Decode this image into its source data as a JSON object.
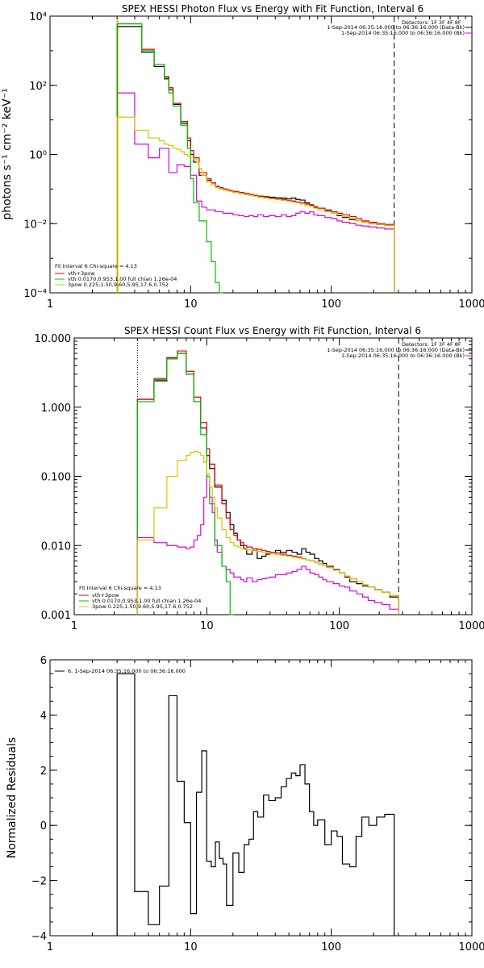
{
  "chart_data": [
    {
      "type": "line",
      "id": "photon",
      "title": "SPEX HESSI Photon Flux vs Energy with Fit Function, Interval 6",
      "xlabel": "",
      "ylabel": "photons s⁻¹ cm⁻² keV⁻¹",
      "xscale": "log",
      "yscale": "log",
      "xlim": [
        1,
        1000
      ],
      "ylim": [
        0.0001,
        10000
      ],
      "xticks": [
        1,
        10,
        100,
        1000
      ],
      "xtick_labels": [
        "1",
        "10",
        "100",
        "1000"
      ],
      "yticks": [
        0.0001,
        0.01,
        1,
        100,
        10000
      ],
      "ytick_labels": [
        "10⁻⁴",
        "10⁻²",
        "10⁰",
        "10²",
        "10⁴"
      ],
      "header": {
        "detectors": "Detectors: 1F 3F 4F 8F",
        "entries": [
          {
            "text": "1-Sep-2014 06:35:16.000 to 06:36:16.000 (Data-Bk)",
            "color": "#000000"
          },
          {
            "text": "1-Sep-2014 06:35:16.000 to 06:36:16.000 (Bk)",
            "color": "#e000e0"
          }
        ]
      },
      "fit_box": {
        "header": "Fit Interval 6   Chi-square = 4.13",
        "entries": [
          {
            "text": "vth+3pow",
            "color": "#e00000"
          },
          {
            "text": "vth 0.0170,0.953,1.00  full chian 1.26e-04",
            "color": "#00c000"
          },
          {
            "text": "3pow 0.225,1.50,9.60,5.95,17.6,0.752",
            "color": "#e0c000"
          }
        ]
      },
      "vlines": [
        {
          "x": 3,
          "style": "dotted",
          "color": "#000000"
        },
        {
          "x": 3,
          "style": "solid",
          "color": "#e0c000"
        },
        {
          "x": 280,
          "style": "dashed",
          "color": "#000000"
        }
      ],
      "edges": [
        3.0,
        3.5,
        4.0,
        4.5,
        5.0,
        5.5,
        6.0,
        6.5,
        7.0,
        7.5,
        8.0,
        8.5,
        9.0,
        9.5,
        10.0,
        10.5,
        11.0,
        11.5,
        12.0,
        13.0,
        14.0,
        15.0,
        16.0,
        17.0,
        18.0,
        19.0,
        20.0,
        22.0,
        24.0,
        26.0,
        28.0,
        30.0,
        33.0,
        36.0,
        40.0,
        44.0,
        48.0,
        52.0,
        56.0,
        60.0,
        65.0,
        70.0,
        75.0,
        80.0,
        90.0,
        100.0,
        110.0,
        120.0,
        135.0,
        150.0,
        165.0,
        185.0,
        210.0,
        240.0,
        280.0
      ],
      "series": [
        {
          "name": "",
          "color": "#000000",
          "values": [
            5000,
            5000,
            5000,
            900,
            900,
            350,
            350,
            160,
            75,
            28,
            28,
            8,
            8,
            2.5,
            1.0,
            0.6,
            0.6,
            0.25,
            0.25,
            0.18,
            0.15,
            0.12,
            0.11,
            0.1,
            0.095,
            0.085,
            0.08,
            0.075,
            0.07,
            0.068,
            0.065,
            0.062,
            0.06,
            0.058,
            0.056,
            0.055,
            0.052,
            0.055,
            0.05,
            0.048,
            0.04,
            0.035,
            0.03,
            0.028,
            0.024,
            0.02,
            0.017,
            0.015,
            0.013,
            0.012,
            0.011,
            0.01,
            0.0095,
            0.009
          ]
        },
        {
          "name": "",
          "color": "#e000e0",
          "values": [
            60,
            60,
            2,
            2,
            0.8,
            0.8,
            1.5,
            1.5,
            0.3,
            0.3,
            0.5,
            0.5,
            0.45,
            0.45,
            0.25,
            0.25,
            0.045,
            0.045,
            0.03,
            0.025,
            0.025,
            0.022,
            0.022,
            0.02,
            0.02,
            0.02,
            0.018,
            0.017,
            0.016,
            0.017,
            0.016,
            0.018,
            0.016,
            0.017,
            0.016,
            0.018,
            0.016,
            0.017,
            0.02,
            0.022,
            0.02,
            0.022,
            0.018,
            0.017,
            0.015,
            0.014,
            0.012,
            0.011,
            0.01,
            0.009,
            0.0085,
            0.008,
            0.0075,
            0.007
          ]
        },
        {
          "name": "vth+3pow",
          "color": "#e00000",
          "values": [
            6000,
            6000,
            6000,
            1100,
            1100,
            400,
            400,
            180,
            85,
            30,
            30,
            9,
            9,
            3,
            1.3,
            0.8,
            0.8,
            0.3,
            0.3,
            0.2,
            0.15,
            0.12,
            0.11,
            0.1,
            0.095,
            0.09,
            0.085,
            0.08,
            0.075,
            0.07,
            0.066,
            0.062,
            0.058,
            0.055,
            0.052,
            0.05,
            0.047,
            0.045,
            0.042,
            0.04,
            0.037,
            0.034,
            0.031,
            0.028,
            0.025,
            0.022,
            0.02,
            0.018,
            0.016,
            0.014,
            0.012,
            0.011,
            0.01,
            0.0095
          ]
        },
        {
          "name": "vth",
          "color": "#00c000",
          "values": [
            6000,
            6000,
            6000,
            1000,
            1000,
            400,
            400,
            150,
            60,
            25,
            25,
            7,
            7,
            1.5,
            0.2,
            0.04,
            0.04,
            0.012,
            0.012,
            0.003,
            0.0008,
            0.0002,
            6e-05
          ]
        },
        {
          "name": "3pow",
          "color": "#e0c000",
          "values": [
            12,
            12,
            5,
            5,
            3,
            3,
            2.5,
            2,
            1.8,
            1.5,
            1.4,
            1.2,
            1.0,
            0.9,
            0.8,
            0.75,
            0.6,
            0.4,
            0.25,
            0.16,
            0.13,
            0.11,
            0.1,
            0.095,
            0.09,
            0.085,
            0.08,
            0.075,
            0.07,
            0.066,
            0.062,
            0.058,
            0.055,
            0.052,
            0.05,
            0.047,
            0.045,
            0.042,
            0.04,
            0.037,
            0.034,
            0.031,
            0.028,
            0.025,
            0.022,
            0.02,
            0.018,
            0.016,
            0.014,
            0.012,
            0.011,
            0.01,
            0.0095,
            0.009
          ]
        }
      ]
    },
    {
      "type": "line",
      "id": "count",
      "title": "SPEX HESSI Count Flux vs Energy with Fit Function, Interval 6",
      "xlabel": "",
      "ylabel": "",
      "xscale": "log",
      "yscale": "log",
      "xlim": [
        1,
        1000
      ],
      "ylim": [
        0.001,
        10
      ],
      "xticks": [
        1,
        10,
        100,
        1000
      ],
      "xtick_labels": [
        "1",
        "10",
        "100",
        "1000"
      ],
      "yticks": [
        0.001,
        0.01,
        0.1,
        1,
        10
      ],
      "ytick_labels": [
        "0.001",
        "0.010",
        "0.100",
        "1.000",
        "10.000"
      ],
      "header": {
        "detectors": "Detectors: 1F 3F 4F 8F",
        "entries": [
          {
            "text": "1-Sep-2014 06:35:16.000 to 06:36:16.000 (Data-Bk)",
            "color": "#000000"
          },
          {
            "text": "1-Sep-2014 06:35:16.000 to 06:36:16.000 (Bk)",
            "color": "#e000e0"
          }
        ]
      },
      "fit_box": {
        "header": "Fit Interval 6   Chi-square = 4.13",
        "entries": [
          {
            "text": "vth+3pow",
            "color": "#e00000"
          },
          {
            "text": "vth 0.0170,0.953,1.00  full chian 1.26e-04",
            "color": "#00c000"
          },
          {
            "text": "3pow 0.225,1.50,9.60,5.95,17.6,0.752",
            "color": "#e0c000"
          }
        ]
      },
      "vlines": [
        {
          "x": 3,
          "style": "dotted",
          "color": "#000000"
        },
        {
          "x": 280,
          "style": "dashed",
          "color": "#000000"
        }
      ],
      "edges": [
        3.0,
        3.5,
        4.0,
        4.5,
        5.0,
        5.5,
        6.0,
        6.5,
        7.0,
        7.5,
        8.0,
        8.5,
        9.0,
        9.5,
        10.0,
        10.5,
        11.0,
        11.5,
        12.0,
        13.0,
        14.0,
        15.0,
        16.0,
        17.0,
        18.0,
        19.0,
        20.0,
        22.0,
        24.0,
        26.0,
        28.0,
        30.0,
        33.0,
        36.0,
        40.0,
        44.0,
        48.0,
        52.0,
        56.0,
        60.0,
        65.0,
        70.0,
        75.0,
        80.0,
        90.0,
        100.0,
        110.0,
        120.0,
        135.0,
        150.0,
        165.0,
        185.0,
        210.0,
        240.0,
        280.0
      ],
      "series": [
        {
          "name": "",
          "color": "#000000",
          "values": [
            1.3,
            1.3,
            2.4,
            2.4,
            5.0,
            5.0,
            6.0,
            6.0,
            3.0,
            3.0,
            1.2,
            1.2,
            0.5,
            0.5,
            0.2,
            0.13,
            0.13,
            0.07,
            0.07,
            0.045,
            0.03,
            0.02,
            0.015,
            0.012,
            0.01,
            0.009,
            0.0075,
            0.0085,
            0.0065,
            0.007,
            0.0075,
            0.008,
            0.0085,
            0.008,
            0.0085,
            0.008,
            0.0075,
            0.009,
            0.008,
            0.0075,
            0.0065,
            0.006,
            0.0055,
            0.005,
            0.0045,
            0.004,
            0.0035,
            0.003,
            0.0028,
            0.0026,
            0.0025,
            0.0023,
            0.0021,
            0.0018
          ]
        },
        {
          "name": "",
          "color": "#e000e0",
          "values": [
            0.013,
            0.013,
            0.011,
            0.011,
            0.01,
            0.01,
            0.0095,
            0.0095,
            0.009,
            0.0095,
            0.012,
            0.014,
            0.02,
            0.05,
            0.1,
            0.05,
            0.03,
            0.012,
            0.008,
            0.005,
            0.0045,
            0.004,
            0.0035,
            0.0035,
            0.0032,
            0.003,
            0.0034,
            0.003,
            0.0032,
            0.0033,
            0.0034,
            0.0035,
            0.0038,
            0.0038,
            0.004,
            0.0042,
            0.0045,
            0.005,
            0.0045,
            0.004,
            0.0038,
            0.0035,
            0.0032,
            0.003,
            0.0028,
            0.0026,
            0.0025,
            0.0022,
            0.002,
            0.0018,
            0.0016,
            0.0015,
            0.0014,
            0.0012
          ]
        },
        {
          "name": "vth+3pow",
          "color": "#e00000",
          "values": [
            1.3,
            1.3,
            2.6,
            2.6,
            5.2,
            5.2,
            6.5,
            6.5,
            3.3,
            3.3,
            1.4,
            1.4,
            0.6,
            0.6,
            0.25,
            0.15,
            0.15,
            0.075,
            0.075,
            0.04,
            0.025,
            0.017,
            0.014,
            0.012,
            0.011,
            0.01,
            0.0095,
            0.009,
            0.0088,
            0.0085,
            0.0082,
            0.008,
            0.0078,
            0.0075,
            0.0072,
            0.007,
            0.0068,
            0.0065,
            0.0062,
            0.006,
            0.0057,
            0.0054,
            0.0051,
            0.0048,
            0.0044,
            0.004,
            0.0036,
            0.0033,
            0.003,
            0.0027,
            0.0025,
            0.0023,
            0.0021,
            0.0019
          ]
        },
        {
          "name": "vth",
          "color": "#00c000",
          "values": [
            1.2,
            1.2,
            2.5,
            2.5,
            5.0,
            5.0,
            6.0,
            6.0,
            3.0,
            3.0,
            1.2,
            1.2,
            0.4,
            0.4,
            0.1,
            0.04,
            0.04,
            0.01,
            0.01,
            0.005,
            0.003,
            0.001
          ]
        },
        {
          "name": "3pow",
          "color": "#e0c000",
          "values": [
            0.012,
            0.012,
            0.035,
            0.035,
            0.1,
            0.1,
            0.17,
            0.17,
            0.2,
            0.22,
            0.23,
            0.22,
            0.2,
            0.16,
            0.11,
            0.07,
            0.05,
            0.035,
            0.025,
            0.017,
            0.013,
            0.011,
            0.01,
            0.0095,
            0.009,
            0.0088,
            0.0086,
            0.0084,
            0.0082,
            0.008,
            0.0078,
            0.0076,
            0.0074,
            0.0072,
            0.007,
            0.0068,
            0.0066,
            0.0064,
            0.0062,
            0.006,
            0.0057,
            0.0054,
            0.0051,
            0.0048,
            0.0044,
            0.004,
            0.0036,
            0.0033,
            0.003,
            0.0027,
            0.0025,
            0.0023,
            0.0021,
            0.0019
          ]
        }
      ]
    },
    {
      "type": "line",
      "id": "residual",
      "title": "",
      "xlabel": "",
      "ylabel": "Normalized Residuals",
      "xscale": "log",
      "yscale": "linear",
      "xlim": [
        1,
        1000
      ],
      "ylim": [
        -4,
        6
      ],
      "xticks": [
        1,
        10,
        100,
        1000
      ],
      "xtick_labels": [
        "1",
        "10",
        "100",
        "1000"
      ],
      "yticks": [
        -4,
        -2,
        0,
        2,
        4,
        6
      ],
      "ytick_labels": [
        "−4",
        "−2",
        "0",
        "2",
        "4",
        "6"
      ],
      "legend": "6.  1-Sep-2014 06:35:16.000 to 06:36:16.000",
      "edges": [
        3.0,
        3.5,
        4.0,
        4.5,
        5.0,
        5.5,
        6.0,
        6.5,
        7.0,
        7.5,
        8.0,
        8.5,
        9.0,
        9.5,
        10.0,
        10.5,
        11.0,
        11.5,
        12.0,
        13.0,
        14.0,
        15.0,
        16.0,
        17.0,
        18.0,
        19.0,
        20.0,
        22.0,
        24.0,
        26.0,
        28.0,
        30.0,
        33.0,
        36.0,
        40.0,
        44.0,
        48.0,
        52.0,
        56.0,
        60.0,
        65.0,
        70.0,
        75.0,
        80.0,
        90.0,
        100.0,
        110.0,
        120.0,
        135.0,
        150.0,
        165.0,
        185.0,
        210.0,
        240.0,
        280.0
      ],
      "series": [
        {
          "name": "",
          "color": "#000000",
          "values": [
            5.5,
            5.5,
            -2.4,
            -2.4,
            -3.6,
            -3.6,
            -2.2,
            -2.2,
            4.7,
            4.7,
            1.6,
            1.6,
            0.1,
            0.1,
            -3.2,
            -3.2,
            1.2,
            1.2,
            2.7,
            -1.3,
            -1.5,
            -0.6,
            -1.2,
            -1.4,
            -2.9,
            -2.9,
            -1.0,
            -1.7,
            -0.7,
            -0.5,
            0.5,
            0.3,
            1.1,
            0.9,
            1.0,
            1.4,
            1.7,
            1.9,
            1.8,
            2.2,
            1.5,
            0.5,
            0.0,
            0.2,
            -0.7,
            -0.2,
            -0.4,
            -1.4,
            -1.5,
            -0.4,
            0.3,
            0.0,
            0.3,
            0.4
          ]
        }
      ]
    }
  ]
}
